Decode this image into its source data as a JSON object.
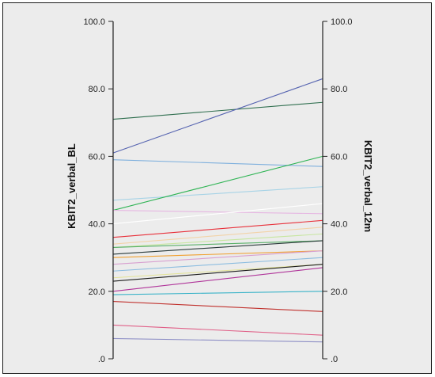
{
  "chart_data": {
    "type": "line",
    "subtype": "parallel-coordinates",
    "axes": [
      {
        "label": "KBIT2_verbal_BL",
        "side": "left"
      },
      {
        "label": "KBIT2_verbal_12m",
        "side": "right"
      }
    ],
    "ylim": [
      0,
      100
    ],
    "tick_labels": [
      ".0",
      "20.0",
      "40.0",
      "60.0",
      "80.0",
      "100.0"
    ],
    "grid": false,
    "series": [
      {
        "values": [
          71,
          76
        ],
        "color": "#2e6e4e"
      },
      {
        "values": [
          61,
          83
        ],
        "color": "#5563b0"
      },
      {
        "values": [
          59,
          57
        ],
        "color": "#7fb0dd"
      },
      {
        "values": [
          47,
          51
        ],
        "color": "#a7d3e6"
      },
      {
        "values": [
          44,
          60
        ],
        "color": "#2fb454"
      },
      {
        "values": [
          44,
          43
        ],
        "color": "#e6b7e2"
      },
      {
        "values": [
          40,
          46
        ],
        "color": "#ffffff"
      },
      {
        "values": [
          36,
          41
        ],
        "color": "#e8303a"
      },
      {
        "values": [
          34,
          39
        ],
        "color": "#f2d3a8"
      },
      {
        "values": [
          33,
          37
        ],
        "color": "#c7e6a0"
      },
      {
        "values": [
          33,
          35
        ],
        "color": "#58b068"
      },
      {
        "values": [
          31,
          35
        ],
        "color": "#2a3a3a"
      },
      {
        "values": [
          30,
          32
        ],
        "color": "#f0a030"
      },
      {
        "values": [
          28,
          32
        ],
        "color": "#d8a0d0"
      },
      {
        "values": [
          26,
          30
        ],
        "color": "#8bbce0"
      },
      {
        "values": [
          24,
          28
        ],
        "color": "#e3e39a"
      },
      {
        "values": [
          23,
          28
        ],
        "color": "#1e1e1e"
      },
      {
        "values": [
          20,
          27
        ],
        "color": "#b0359a"
      },
      {
        "values": [
          19,
          20
        ],
        "color": "#3ab3c8"
      },
      {
        "values": [
          17,
          14
        ],
        "color": "#c0302c"
      },
      {
        "values": [
          10,
          7
        ],
        "color": "#e06088"
      },
      {
        "values": [
          6,
          5
        ],
        "color": "#8f90c6"
      }
    ]
  }
}
